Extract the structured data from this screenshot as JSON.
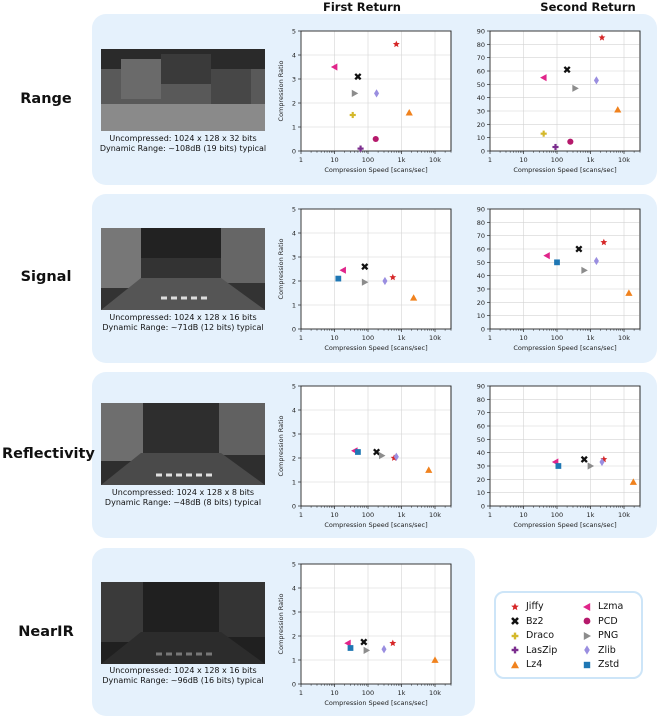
{
  "columns": [
    "First Return",
    "Second Return"
  ],
  "methods": [
    {
      "name": "Jiffy",
      "color": "#d62728",
      "marker": "star"
    },
    {
      "name": "Bz2",
      "color": "#111111",
      "marker": "x"
    },
    {
      "name": "Draco",
      "color": "#d4b82b",
      "marker": "plus"
    },
    {
      "name": "LasZip",
      "color": "#7b2d8e",
      "marker": "plus"
    },
    {
      "name": "Lz4",
      "color": "#f0821e",
      "marker": "triangle-up"
    },
    {
      "name": "Lzma",
      "color": "#e0258a",
      "marker": "triangle-left"
    },
    {
      "name": "PCD",
      "color": "#b5196b",
      "marker": "circle"
    },
    {
      "name": "PNG",
      "color": "#8c8c8c",
      "marker": "triangle-right"
    },
    {
      "name": "Zlib",
      "color": "#9a8ee0",
      "marker": "diamond"
    },
    {
      "name": "Zstd",
      "color": "#1f77b4",
      "marker": "square"
    }
  ],
  "rows": [
    {
      "name": "Range",
      "caption_1": "Uncompressed: 1024 x 128 x 32 bits",
      "caption_2": "Dynamic Range: ~108dB (19 bits) typical"
    },
    {
      "name": "Signal",
      "caption_1": "Uncompressed: 1024 x 128 x 16 bits",
      "caption_2": "Dynamic Range: ~71dB (12 bits) typical"
    },
    {
      "name": "Reflectivity",
      "caption_1": "Uncompressed: 1024 x 128 x 8 bits",
      "caption_2": "Dynamic Range: ~48dB (8 bits) typical"
    },
    {
      "name": "NearIR",
      "caption_1": "Uncompressed: 1024 x 128 x 16 bits",
      "caption_2": "Dynamic Range: ~96dB (16 bits) typical"
    }
  ],
  "chart_data": [
    {
      "id": "range-first",
      "type": "scatter",
      "xlabel": "Compression Speed [scans/sec]",
      "ylabel": "Compression Ratio",
      "xscale": "log",
      "xlim": [
        1,
        30000
      ],
      "ylim": [
        0,
        5
      ],
      "yticks": [
        0,
        1,
        2,
        3,
        4,
        5
      ],
      "xticks": [
        1,
        10,
        100,
        1000,
        10000
      ],
      "xticklabels": [
        "1",
        "10",
        "100",
        "1k",
        "10k"
      ],
      "grid": true,
      "points": [
        {
          "method": "Jiffy",
          "x": 700,
          "y": 4.45
        },
        {
          "method": "Bz2",
          "x": 50,
          "y": 3.1
        },
        {
          "method": "Draco",
          "x": 35,
          "y": 1.5
        },
        {
          "method": "LasZip",
          "x": 60,
          "y": 0.1
        },
        {
          "method": "Lz4",
          "x": 1700,
          "y": 1.6
        },
        {
          "method": "Lzma",
          "x": 10,
          "y": 3.5
        },
        {
          "method": "PCD",
          "x": 170,
          "y": 0.5
        },
        {
          "method": "PNG",
          "x": 40,
          "y": 2.4
        },
        {
          "method": "Zlib",
          "x": 180,
          "y": 2.4
        }
      ]
    },
    {
      "id": "range-second",
      "type": "scatter",
      "xlabel": "Compression Speed [scans/sec]",
      "ylabel": "",
      "xscale": "log",
      "xlim": [
        1,
        30000
      ],
      "ylim": [
        0,
        90
      ],
      "yticks": [
        0,
        10,
        20,
        30,
        40,
        50,
        60,
        70,
        80,
        90
      ],
      "xticks": [
        1,
        10,
        100,
        1000,
        10000
      ],
      "xticklabels": [
        "1",
        "10",
        "100",
        "1k",
        "10k"
      ],
      "grid": true,
      "points": [
        {
          "method": "Jiffy",
          "x": 2200,
          "y": 85
        },
        {
          "method": "Bz2",
          "x": 200,
          "y": 61
        },
        {
          "method": "Draco",
          "x": 40,
          "y": 13
        },
        {
          "method": "LasZip",
          "x": 90,
          "y": 3
        },
        {
          "method": "Lz4",
          "x": 6500,
          "y": 31
        },
        {
          "method": "Lzma",
          "x": 40,
          "y": 55
        },
        {
          "method": "PCD",
          "x": 250,
          "y": 7
        },
        {
          "method": "PNG",
          "x": 350,
          "y": 47
        },
        {
          "method": "Zlib",
          "x": 1500,
          "y": 53
        }
      ]
    },
    {
      "id": "signal-first",
      "type": "scatter",
      "xlabel": "Compression Speed [scans/sec]",
      "ylabel": "Compression Ratio",
      "xscale": "log",
      "xlim": [
        1,
        30000
      ],
      "ylim": [
        0,
        5
      ],
      "yticks": [
        0,
        1,
        2,
        3,
        4,
        5
      ],
      "xticks": [
        1,
        10,
        100,
        1000,
        10000
      ],
      "xticklabels": [
        "1",
        "10",
        "100",
        "1k",
        "10k"
      ],
      "grid": true,
      "points": [
        {
          "method": "Jiffy",
          "x": 550,
          "y": 2.15
        },
        {
          "method": "Bz2",
          "x": 80,
          "y": 2.6
        },
        {
          "method": "Lz4",
          "x": 2300,
          "y": 1.3
        },
        {
          "method": "Lzma",
          "x": 18,
          "y": 2.45
        },
        {
          "method": "PNG",
          "x": 80,
          "y": 1.95
        },
        {
          "method": "Zlib",
          "x": 320,
          "y": 2.0
        },
        {
          "method": "Zstd",
          "x": 13,
          "y": 2.1
        }
      ]
    },
    {
      "id": "signal-second",
      "type": "scatter",
      "xlabel": "Compression Speed [scans/sec]",
      "ylabel": "",
      "xscale": "log",
      "xlim": [
        1,
        30000
      ],
      "ylim": [
        0,
        90
      ],
      "yticks": [
        0,
        10,
        20,
        30,
        40,
        50,
        60,
        70,
        80,
        90
      ],
      "xticks": [
        1,
        10,
        100,
        1000,
        10000
      ],
      "xticklabels": [
        "1",
        "10",
        "100",
        "1k",
        "10k"
      ],
      "grid": true,
      "points": [
        {
          "method": "Jiffy",
          "x": 2500,
          "y": 65
        },
        {
          "method": "Bz2",
          "x": 450,
          "y": 60
        },
        {
          "method": "Lz4",
          "x": 14000,
          "y": 27
        },
        {
          "method": "Lzma",
          "x": 50,
          "y": 55
        },
        {
          "method": "PNG",
          "x": 650,
          "y": 44
        },
        {
          "method": "Zlib",
          "x": 1500,
          "y": 51
        },
        {
          "method": "Zstd",
          "x": 100,
          "y": 50
        }
      ]
    },
    {
      "id": "reflectivity-first",
      "type": "scatter",
      "xlabel": "Compression Speed [scans/sec]",
      "ylabel": "Compression Ratio",
      "xscale": "log",
      "xlim": [
        1,
        30000
      ],
      "ylim": [
        0,
        5
      ],
      "yticks": [
        0,
        1,
        2,
        3,
        4,
        5
      ],
      "xticks": [
        1,
        10,
        100,
        1000,
        10000
      ],
      "xticklabels": [
        "1",
        "10",
        "100",
        "1k",
        "10k"
      ],
      "grid": true,
      "points": [
        {
          "method": "Jiffy",
          "x": 600,
          "y": 2.0
        },
        {
          "method": "Bz2",
          "x": 180,
          "y": 2.25
        },
        {
          "method": "Lz4",
          "x": 6500,
          "y": 1.5
        },
        {
          "method": "Lzma",
          "x": 40,
          "y": 2.3
        },
        {
          "method": "PNG",
          "x": 260,
          "y": 2.1
        },
        {
          "method": "Zlib",
          "x": 700,
          "y": 2.05
        },
        {
          "method": "Zstd",
          "x": 50,
          "y": 2.25
        }
      ]
    },
    {
      "id": "reflectivity-second",
      "type": "scatter",
      "xlabel": "Compression Speed [scans/sec]",
      "ylabel": "",
      "xscale": "log",
      "xlim": [
        1,
        30000
      ],
      "ylim": [
        0,
        90
      ],
      "yticks": [
        0,
        10,
        20,
        30,
        40,
        50,
        60,
        70,
        80,
        90
      ],
      "xticks": [
        1,
        10,
        100,
        1000,
        10000
      ],
      "xticklabels": [
        "1",
        "10",
        "100",
        "1k",
        "10k"
      ],
      "grid": true,
      "points": [
        {
          "method": "Jiffy",
          "x": 2500,
          "y": 35
        },
        {
          "method": "Bz2",
          "x": 650,
          "y": 35
        },
        {
          "method": "Lz4",
          "x": 19000,
          "y": 18
        },
        {
          "method": "Lzma",
          "x": 90,
          "y": 33
        },
        {
          "method": "PNG",
          "x": 1000,
          "y": 30
        },
        {
          "method": "Zlib",
          "x": 2200,
          "y": 33
        },
        {
          "method": "Zstd",
          "x": 110,
          "y": 30
        }
      ]
    },
    {
      "id": "nearir-first",
      "type": "scatter",
      "xlabel": "Compression Speed [scans/sec]",
      "ylabel": "Compression Ratio",
      "xscale": "log",
      "xlim": [
        1,
        30000
      ],
      "ylim": [
        0,
        5
      ],
      "yticks": [
        0,
        1,
        2,
        3,
        4,
        5
      ],
      "xticks": [
        1,
        10,
        100,
        1000,
        10000
      ],
      "xticklabels": [
        "1",
        "10",
        "100",
        "1k",
        "10k"
      ],
      "grid": true,
      "points": [
        {
          "method": "Jiffy",
          "x": 550,
          "y": 1.7
        },
        {
          "method": "Bz2",
          "x": 75,
          "y": 1.75
        },
        {
          "method": "Lz4",
          "x": 10000,
          "y": 1.0
        },
        {
          "method": "Lzma",
          "x": 25,
          "y": 1.7
        },
        {
          "method": "PNG",
          "x": 90,
          "y": 1.4
        },
        {
          "method": "Zlib",
          "x": 300,
          "y": 1.45
        },
        {
          "method": "Zstd",
          "x": 30,
          "y": 1.5
        }
      ]
    }
  ]
}
